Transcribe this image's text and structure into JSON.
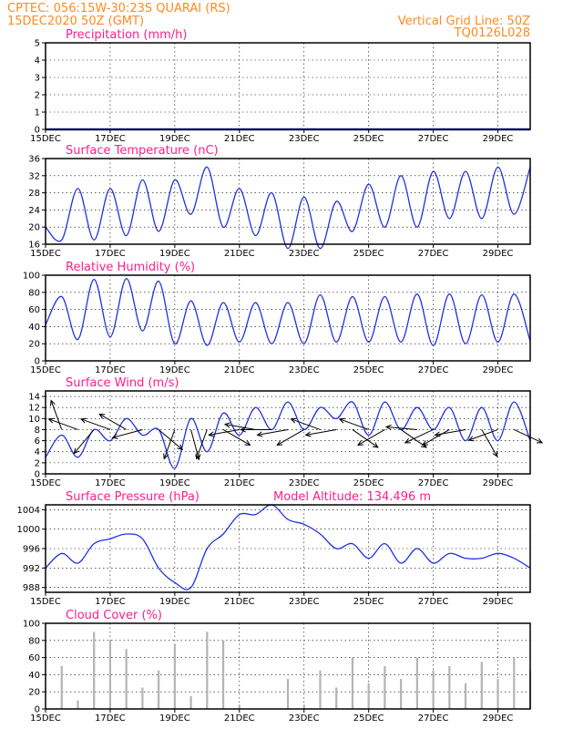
{
  "header": {
    "line1_left": "CPTEC:   056:15W-30:23S   QUARAI (RS)",
    "line2_left": "15DEC2020 50Z (GMT)",
    "line1_right": "Vertical Grid Line: 50Z",
    "line2_right": "TQ0126L028"
  },
  "x_axis": {
    "tick_labels": [
      "15DEC",
      "17DEC",
      "19DEC",
      "21DEC",
      "23DEC",
      "25DEC",
      "27DEC",
      "29DEC"
    ]
  },
  "panels": {
    "precipitation": {
      "title": "Precipitation (mm/h)",
      "y_ticks": [
        "0",
        "1",
        "2",
        "3",
        "4",
        "5"
      ]
    },
    "temperature": {
      "title": "Surface Temperature (nC)",
      "y_ticks": [
        "16",
        "20",
        "24",
        "28",
        "32",
        "36"
      ]
    },
    "humidity": {
      "title": "Relative Humidity (%)",
      "y_ticks": [
        "0",
        "20",
        "40",
        "60",
        "80",
        "100"
      ]
    },
    "wind": {
      "title": "Surface Wind (m/s)",
      "y_ticks": [
        "0",
        "2",
        "4",
        "6",
        "8",
        "10",
        "12",
        "14"
      ]
    },
    "pressure": {
      "title": "Surface Pressure (hPa)",
      "extra": "Model Altitude: 134.496 m",
      "y_ticks": [
        "988",
        "992",
        "996",
        "1000",
        "1004"
      ]
    },
    "cloud": {
      "title": "Cloud Cover (%)",
      "y_ticks": [
        "0",
        "20",
        "40",
        "60",
        "80",
        "100"
      ]
    }
  },
  "colors": {
    "header": "#ff8a1e",
    "panel_title": "#ff1e8c",
    "series": "#2030e0",
    "cloud_bars": "#b4b4b4"
  },
  "chart_data": [
    {
      "type": "line",
      "name_ref": "precipitation",
      "xlabel": "",
      "ylabel": "",
      "ylim": [
        0,
        5
      ],
      "grid": true,
      "x": [
        "15DEC",
        "17DEC",
        "19DEC",
        "21DEC",
        "23DEC",
        "25DEC",
        "27DEC",
        "29DEC"
      ],
      "values": [
        0,
        0,
        0,
        0,
        0,
        0,
        0,
        0
      ]
    },
    {
      "type": "line",
      "name_ref": "temperature",
      "ylim": [
        16,
        36
      ],
      "grid": true,
      "x_days": [
        0,
        0.5,
        1,
        1.5,
        2,
        2.5,
        3,
        3.5,
        4,
        4.5,
        5,
        5.5,
        6,
        6.5,
        7,
        7.5,
        8,
        8.5,
        9,
        9.5,
        10,
        10.5,
        11,
        11.5,
        12,
        12.5,
        13,
        13.5,
        14,
        14.5,
        15
      ],
      "values": [
        20,
        17,
        29,
        17,
        29,
        18,
        31,
        19,
        31,
        23,
        34,
        20,
        29,
        18,
        28,
        15,
        27,
        15,
        26,
        19,
        30,
        20,
        32,
        20,
        33,
        22,
        33,
        22,
        34,
        23,
        34
      ]
    },
    {
      "type": "line",
      "name_ref": "humidity",
      "ylim": [
        0,
        100
      ],
      "grid": true,
      "x_days": [
        0,
        0.5,
        1,
        1.5,
        2,
        2.5,
        3,
        3.5,
        4,
        4.5,
        5,
        5.5,
        6,
        6.5,
        7,
        7.5,
        8,
        8.5,
        9,
        9.5,
        10,
        10.5,
        11,
        11.5,
        12,
        12.5,
        13,
        13.5,
        14,
        14.5,
        15
      ],
      "values": [
        42,
        75,
        25,
        95,
        28,
        96,
        35,
        93,
        20,
        70,
        18,
        68,
        22,
        68,
        20,
        68,
        20,
        77,
        22,
        75,
        22,
        75,
        22,
        78,
        18,
        78,
        20,
        77,
        22,
        78,
        23
      ]
    },
    {
      "type": "line",
      "name_ref": "wind",
      "ylim": [
        0,
        15
      ],
      "grid": true,
      "x_days": [
        0,
        0.5,
        1,
        1.5,
        2,
        2.5,
        3,
        3.5,
        4,
        4.5,
        5,
        5.5,
        6,
        6.5,
        7,
        7.5,
        8,
        8.5,
        9,
        9.5,
        10,
        10.5,
        11,
        11.5,
        12,
        12.5,
        13,
        13.5,
        14,
        14.5,
        15
      ],
      "values": [
        3,
        7,
        3,
        8,
        6,
        10,
        7,
        8,
        1,
        10,
        4,
        11,
        7,
        12,
        8,
        13,
        8,
        12,
        10,
        13,
        7,
        13,
        8,
        12,
        8,
        12,
        6,
        12,
        6,
        13,
        6
      ],
      "barb_days": [
        0.5,
        1,
        1.5,
        2,
        2.5,
        3,
        3.5,
        4,
        4.5,
        5,
        5.5,
        6,
        6.5,
        7,
        7.5,
        8,
        8.5,
        9,
        9.5,
        10,
        10.5,
        11,
        11.5,
        12,
        12.5,
        13,
        13.5,
        14,
        14.5
      ],
      "barb_angles_deg": [
        250,
        200,
        130,
        200,
        210,
        165,
        40,
        110,
        75,
        110,
        30,
        170,
        190,
        180,
        170,
        150,
        200,
        170,
        35,
        200,
        150,
        35,
        185,
        155,
        150,
        170,
        60,
        160,
        25
      ]
    },
    {
      "type": "line",
      "name_ref": "pressure",
      "ylim": [
        987,
        1005
      ],
      "grid": true,
      "x_days": [
        0,
        0.5,
        1,
        1.5,
        2,
        2.5,
        3,
        3.5,
        4,
        4.5,
        5,
        5.5,
        6,
        6.5,
        7,
        7.5,
        8,
        8.5,
        9,
        9.5,
        10,
        10.5,
        11,
        11.5,
        12,
        12.5,
        13,
        13.5,
        14,
        14.5,
        15
      ],
      "values": [
        992,
        995,
        993,
        997,
        998,
        999,
        998,
        992,
        989,
        988,
        996,
        999,
        1003,
        1003,
        1005,
        1002,
        1001,
        999,
        996,
        997,
        994,
        997,
        993,
        996,
        993,
        995,
        994,
        994,
        995,
        994,
        992
      ]
    },
    {
      "type": "bar",
      "name_ref": "cloud",
      "ylim": [
        0,
        100
      ],
      "grid": true,
      "x_days": [
        0,
        0.5,
        1,
        1.5,
        2,
        2.5,
        3,
        3.5,
        4,
        4.5,
        5,
        5.5,
        6,
        6.5,
        7,
        7.5,
        8,
        8.5,
        9,
        9.5,
        10,
        10.5,
        11,
        11.5,
        12,
        12.5,
        13,
        13.5,
        14,
        14.5,
        15
      ],
      "values": [
        0,
        50,
        10,
        90,
        80,
        70,
        25,
        45,
        75,
        15,
        90,
        80,
        5,
        0,
        0,
        35,
        5,
        45,
        25,
        60,
        30,
        50,
        35,
        60,
        45,
        50,
        30,
        55,
        35,
        60,
        45
      ]
    }
  ]
}
